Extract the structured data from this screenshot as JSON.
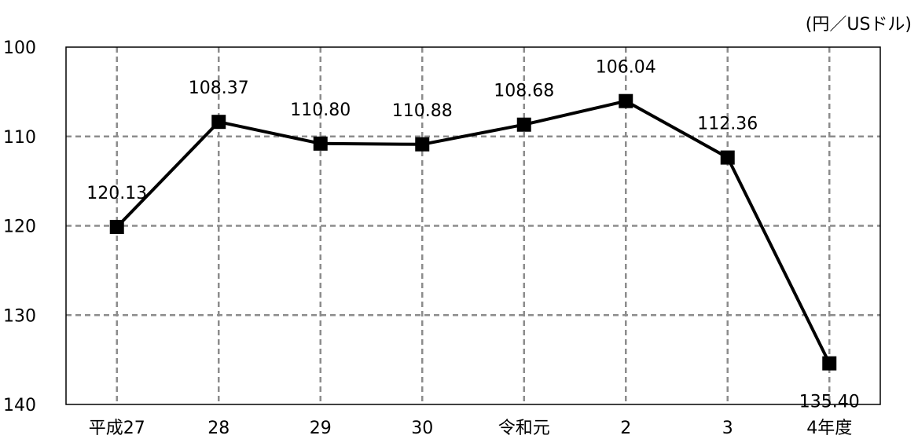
{
  "chart_data": {
    "type": "line",
    "unit_label": "(円／USドル)",
    "categories": [
      "平成27",
      "28",
      "29",
      "30",
      "令和元",
      "2",
      "3",
      "4年度"
    ],
    "values": [
      120.13,
      108.37,
      110.8,
      110.88,
      108.68,
      106.04,
      112.36,
      135.4
    ],
    "data_labels": [
      "120.13",
      "108.37",
      "110.80",
      "110.88",
      "108.68",
      "106.04",
      "112.36",
      "135.40"
    ],
    "y_ticks": [
      "100",
      "110",
      "120",
      "130",
      "140"
    ],
    "ylim": [
      100,
      140
    ],
    "y_inverted": true,
    "grid": true,
    "grid_style": "dashed",
    "marker": "square",
    "line_color": "#000000",
    "grid_color": "#8c8c8c"
  }
}
